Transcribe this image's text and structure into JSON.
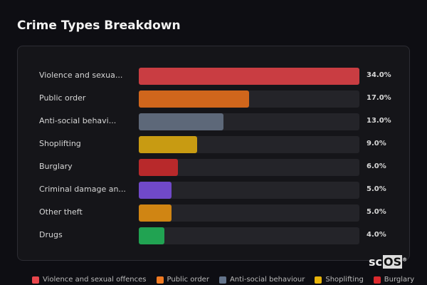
{
  "chart_data": {
    "type": "bar",
    "orientation": "horizontal",
    "title": "Crime Types Breakdown",
    "categories": [
      "Violence and sexua...",
      "Public order",
      "Anti-social behavi...",
      "Shoplifting",
      "Burglary",
      "Criminal damage an...",
      "Other theft",
      "Drugs"
    ],
    "values": [
      34.0,
      17.0,
      13.0,
      9.0,
      6.0,
      5.0,
      5.0,
      4.0
    ],
    "value_labels": [
      "34.0%",
      "17.0%",
      "13.0%",
      "9.0%",
      "6.0%",
      "5.0%",
      "5.0%",
      "4.0%"
    ],
    "colors": [
      "#c93d42",
      "#d0661c",
      "#5d6879",
      "#c89b12",
      "#b8292b",
      "#7049c9",
      "#d08513",
      "#21a352"
    ],
    "xlim": [
      0,
      34
    ],
    "legend": [
      {
        "label": "Violence and sexual offences",
        "color": "#e8464c"
      },
      {
        "label": "Public order",
        "color": "#f07a22"
      },
      {
        "label": "Anti-social behaviour",
        "color": "#64748b"
      },
      {
        "label": "Shoplifting",
        "color": "#e8b40a"
      },
      {
        "label": "Burglary",
        "color": "#dc2a2e"
      }
    ],
    "legend_position": "bottom"
  },
  "logo": {
    "text_a": "sc",
    "text_b": "OS",
    "mark": "®"
  }
}
